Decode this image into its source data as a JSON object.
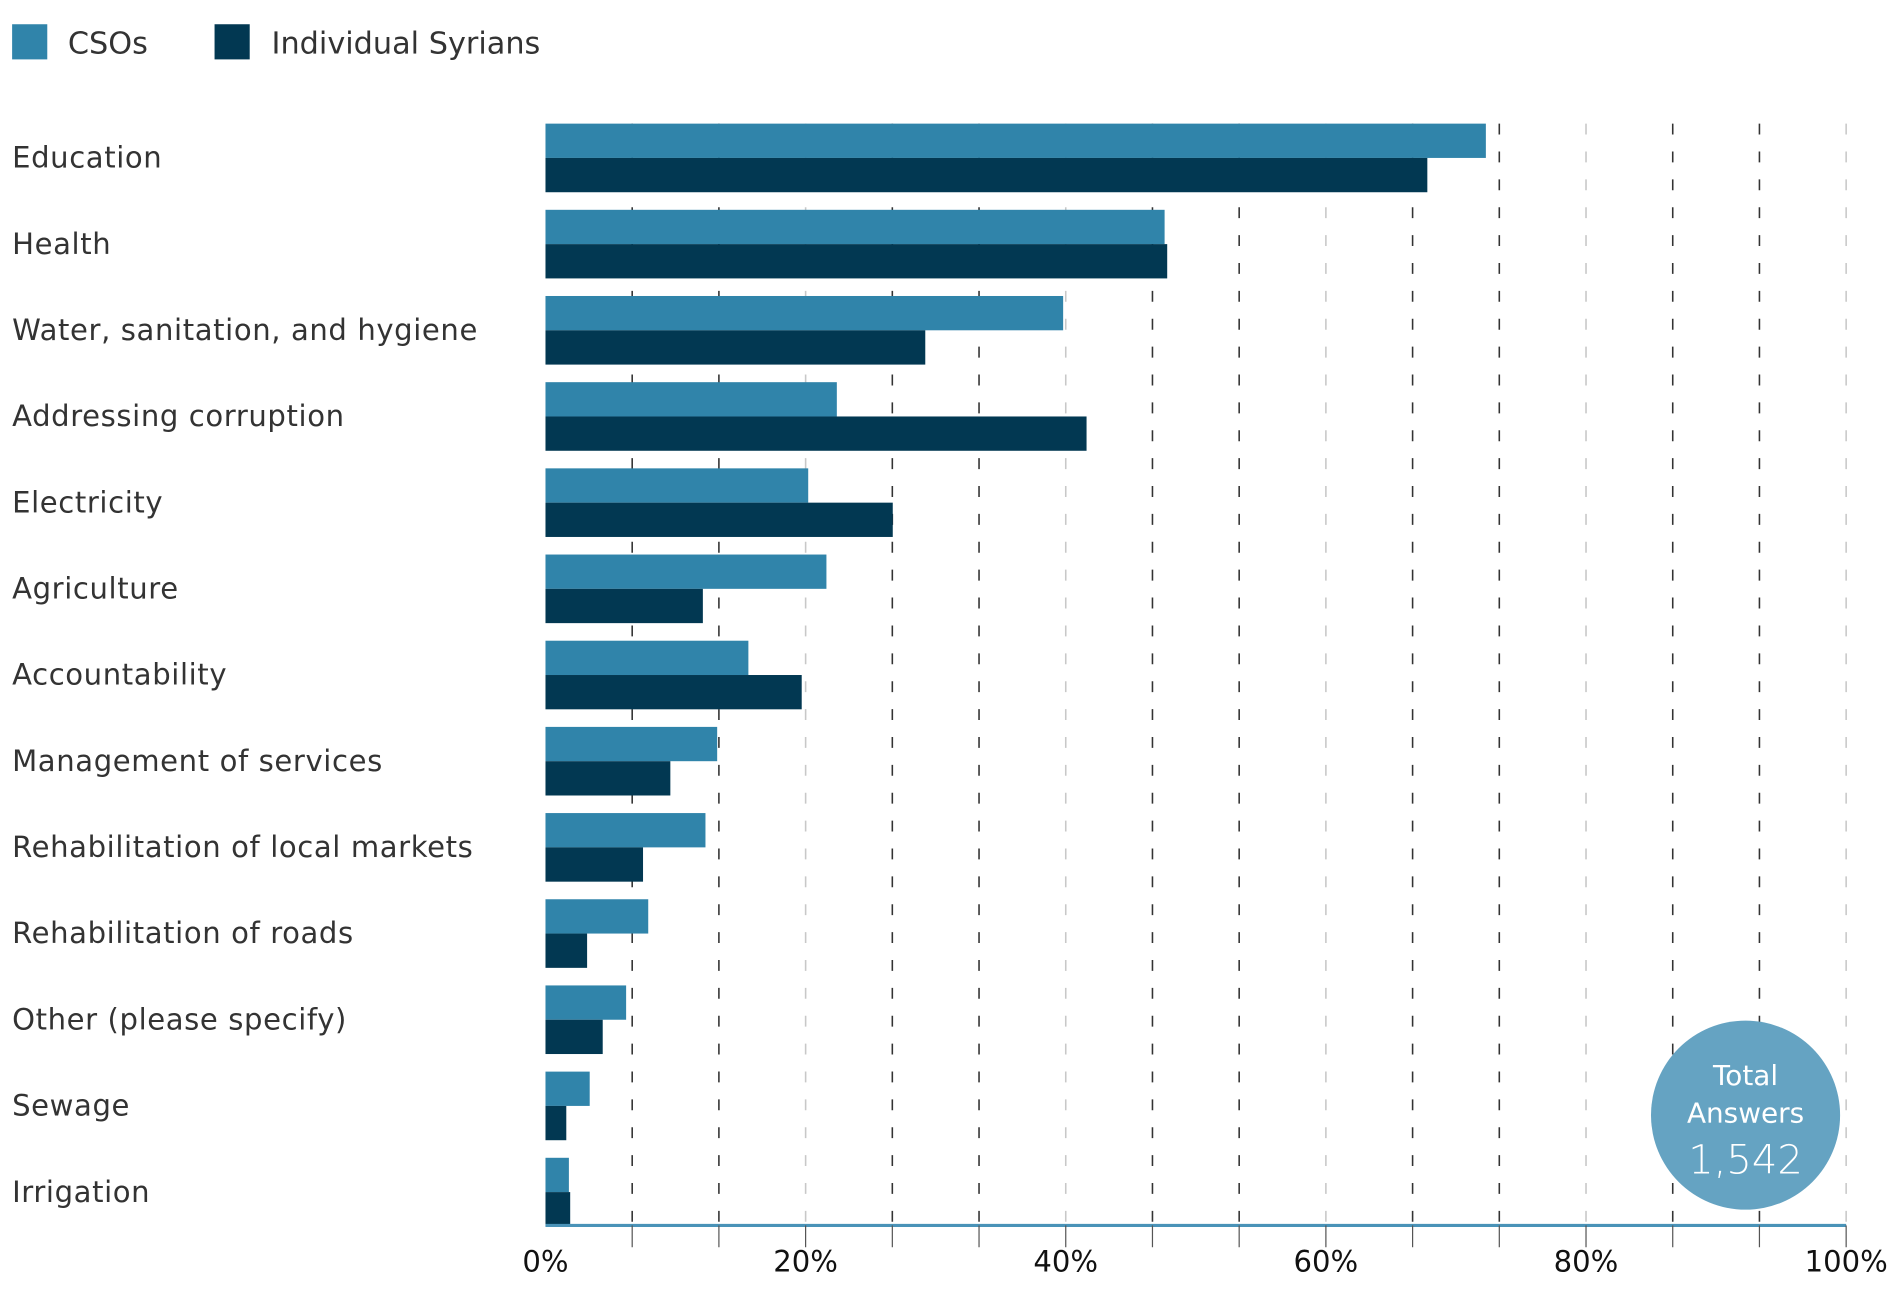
{
  "chart_data": {
    "type": "bar",
    "orientation": "horizontal",
    "title": "",
    "xlabel": "",
    "ylabel": "",
    "xlim": [
      0,
      100
    ],
    "x_tick_labels": [
      "0%",
      "20%",
      "40%",
      "60%",
      "80%",
      "100%"
    ],
    "x_tick_values": [
      0,
      20,
      40,
      60,
      80,
      100
    ],
    "grid": true,
    "legend_position": "top-left",
    "categories": [
      "Education",
      "Health",
      "Water, sanitation, and hygiene",
      "Addressing corruption",
      "Electricity",
      "Agriculture",
      "Accountability",
      "Management of services",
      "Rehabilitation of local markets",
      "Rehabilitation of roads",
      "Other (please specify)",
      "Sewage",
      "Irrigation"
    ],
    "series": [
      {
        "name": "CSOs",
        "color": "#3084aa",
        "values": [
          72.3,
          47.6,
          39.8,
          22.4,
          20.2,
          21.6,
          15.6,
          13.2,
          12.3,
          7.9,
          6.2,
          3.4,
          1.8
        ]
      },
      {
        "name": "Individual Syrians",
        "color": "#023852",
        "values": [
          67.8,
          47.8,
          29.2,
          41.6,
          26.7,
          12.1,
          19.7,
          9.6,
          7.5,
          3.2,
          4.4,
          1.6,
          1.9
        ]
      }
    ],
    "annotation": {
      "line1": "Total",
      "line2": "Answers",
      "value": "1,542",
      "color": "#65a3c2"
    }
  },
  "colors": {
    "axis_line": "#4a93b8",
    "grid_dark": "#333333",
    "grid_light": "#c8c8c8"
  }
}
